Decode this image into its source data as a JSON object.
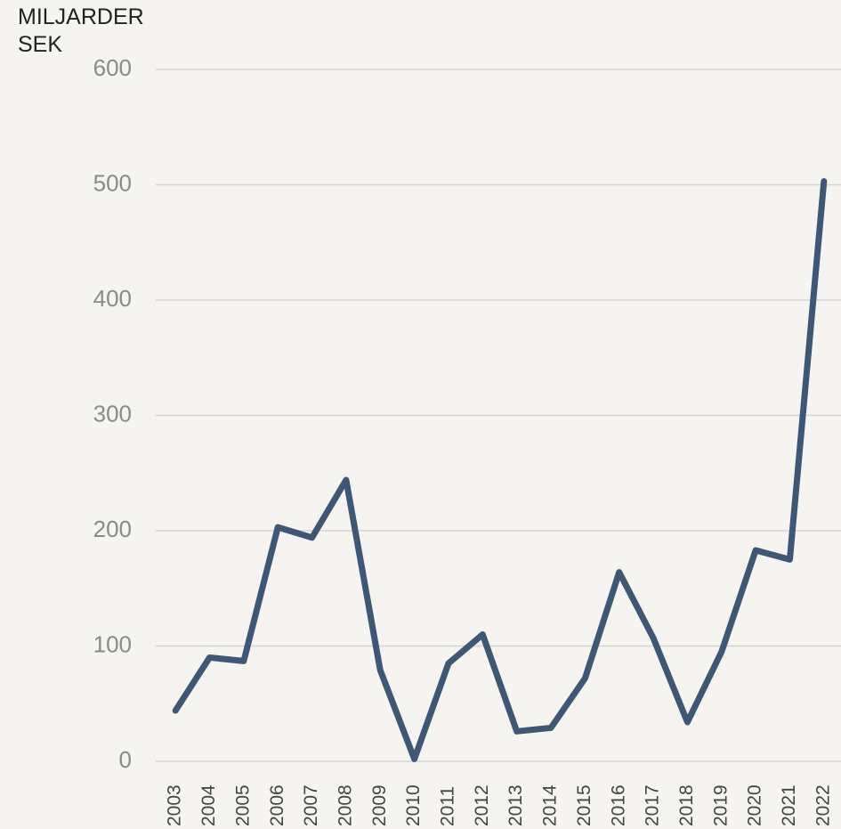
{
  "chart_data": {
    "type": "line",
    "y_axis_label": "MILJARDER SEK",
    "categories": [
      "2003",
      "2004",
      "2005",
      "2006",
      "2007",
      "2008",
      "2009",
      "2010",
      "2011",
      "2012",
      "2013",
      "2014",
      "2015",
      "2016",
      "2017",
      "2018",
      "2019",
      "2020",
      "2021",
      "2022"
    ],
    "series": [
      {
        "name": null,
        "color": "#3d5775",
        "values": [
          44,
          90,
          87,
          203,
          194,
          244,
          79,
          2,
          85,
          110,
          26,
          29,
          72,
          164,
          107,
          34,
          95,
          183,
          175,
          503
        ]
      }
    ],
    "ylim": [
      0,
      600
    ],
    "yticks": [
      0,
      100,
      200,
      300,
      400,
      500,
      600
    ],
    "grid": true
  }
}
